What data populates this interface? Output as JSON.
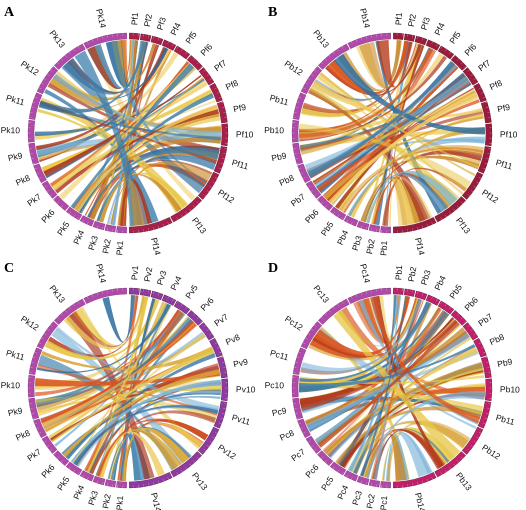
{
  "colors": {
    "ring_left": "#b04aa8",
    "ring_left_edge": "#7a2a76",
    "ring_right_A": "#a8204a",
    "ring_right_B": "#9a1c3c",
    "ring_right_C": "#8e3aa0",
    "ring_right_D": "#c0206a",
    "ribbon_palette": [
      "#2f6fa0",
      "#7ab3d8",
      "#d9a53a",
      "#e8c84a",
      "#d9541e",
      "#a8321c",
      "#c98a2e",
      "#3f7fab",
      "#f0cf6a",
      "#b84020"
    ]
  },
  "panels": [
    {
      "letter": "A",
      "right": [
        "Pf1",
        "Pf2",
        "Pf3",
        "Pf4",
        "Pf5",
        "Pf6",
        "Pf7",
        "Pf8",
        "Pf9",
        "Pf10",
        "Pf11",
        "Pf12",
        "Pf13",
        "Pf14"
      ],
      "left": [
        "Pk1",
        "Pk2",
        "Pk3",
        "Pk4",
        "Pk5",
        "Pk6",
        "Pk7",
        "Pk8",
        "Pk9",
        "Pk10",
        "Pk11",
        "Pk12",
        "Pk13",
        "Pk14"
      ]
    },
    {
      "letter": "B",
      "right": [
        "Pf1",
        "Pf2",
        "Pf3",
        "Pf4",
        "Pf5",
        "Pf6",
        "Pf7",
        "Pf8",
        "Pf9",
        "Pf10",
        "Pf11",
        "Pf12",
        "Pf13",
        "Pf14"
      ],
      "left": [
        "Pb1",
        "Pb2",
        "Pb3",
        "Pb4",
        "Pb5",
        "Pb6",
        "Pb7",
        "Pb8",
        "Pb9",
        "Pb10",
        "Pb11",
        "Pb12",
        "Pb13",
        "Pb14"
      ]
    },
    {
      "letter": "C",
      "right": [
        "Pv1",
        "Pv2",
        "Pv3",
        "Pv4",
        "Pv5",
        "Pv6",
        "Pv7",
        "Pv8",
        "Pv9",
        "Pv10",
        "Pv11",
        "Pv12",
        "Pv13",
        "Pv14"
      ],
      "left": [
        "Pk1",
        "Pk2",
        "Pk3",
        "Pk4",
        "Pk5",
        "Pk6",
        "Pk7",
        "Pk8",
        "Pk9",
        "Pk10",
        "Pk11",
        "Pk12",
        "Pk13",
        "Pk14"
      ]
    },
    {
      "letter": "D",
      "right": [
        "Pb1",
        "Pb2",
        "Pb3",
        "Pb4",
        "Pb5",
        "Pb6",
        "Pb7",
        "Pb8",
        "Pb9",
        "Pb10",
        "Pb11",
        "Pb12",
        "Pb13",
        "Pb14"
      ],
      "left": [
        "Pc1",
        "Pc2",
        "Pc3",
        "Pc4",
        "Pc5",
        "Pc6",
        "Pc7",
        "Pc8",
        "Pc9",
        "Pc10",
        "Pc11",
        "Pc12",
        "Pc13",
        "Pc14"
      ]
    }
  ]
}
